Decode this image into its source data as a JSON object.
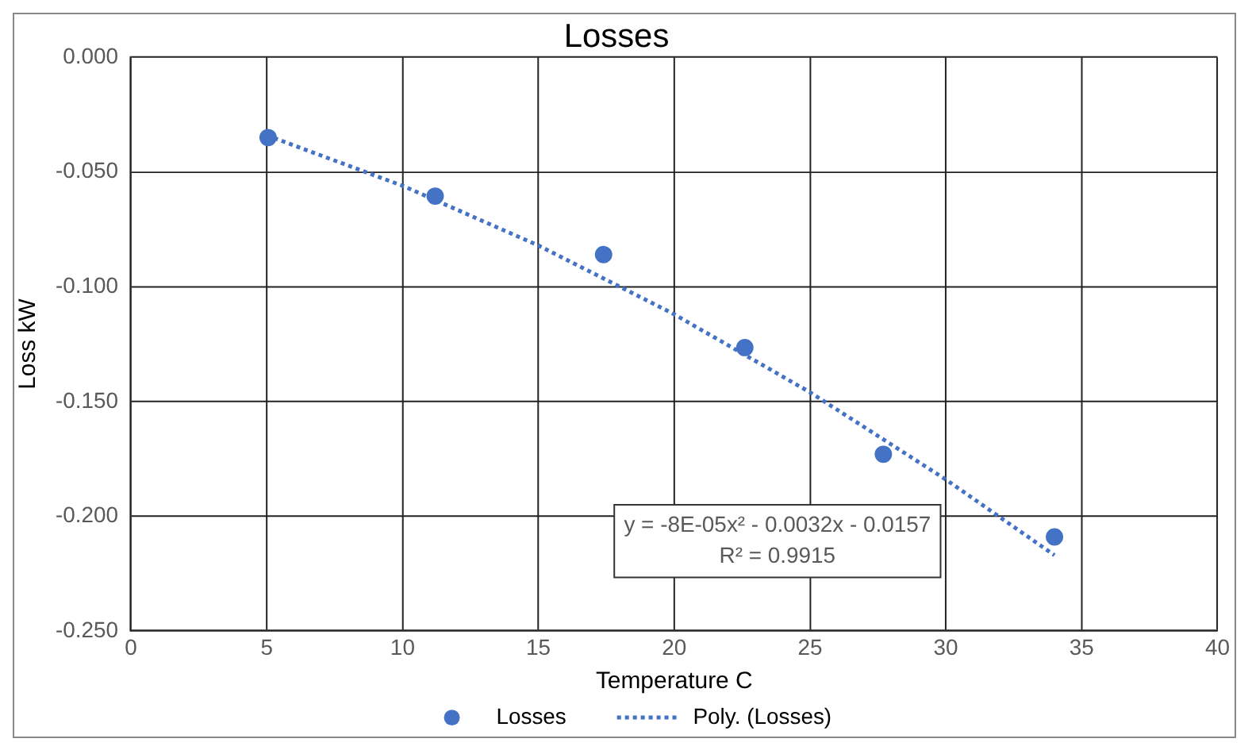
{
  "chart_data": {
    "type": "scatter",
    "title": "Losses",
    "xlabel": "Temperature C",
    "ylabel": "Loss kW",
    "series": [
      {
        "name": "Losses",
        "type": "scatter",
        "color": "#4472c4",
        "marker": "circle",
        "x": [
          5.05,
          11.2,
          17.4,
          22.6,
          27.7,
          34.0
        ],
        "values": [
          -0.035,
          -0.0605,
          -0.086,
          -0.1265,
          -0.173,
          -0.209
        ]
      },
      {
        "name": "Poly. (Losses)",
        "type": "line",
        "color": "#4472c4",
        "marker": "none",
        "line_style": "dotted",
        "x": [
          5,
          10,
          15,
          20,
          25,
          30,
          34
        ],
        "values": [
          -0.034,
          -0.056,
          -0.082,
          -0.112,
          -0.146,
          -0.184,
          -0.217
        ]
      }
    ],
    "annotations": [
      "y = -8E-05x² - 0.0032x - 0.0157",
      "R² = 0.9915"
    ],
    "xlim": [
      0,
      40
    ],
    "xticks": [
      0,
      5,
      10,
      15,
      20,
      25,
      30,
      35,
      40
    ],
    "ylim": [
      -0.25,
      0
    ],
    "yticks": [
      {
        "value": -0.25,
        "label": "-0.250"
      },
      {
        "value": -0.2,
        "label": "-0.200"
      },
      {
        "value": -0.15,
        "label": "-0.150"
      },
      {
        "value": -0.1,
        "label": "-0.100"
      },
      {
        "value": -0.05,
        "label": "-0.050"
      },
      {
        "value": 0,
        "label": "0.000"
      }
    ],
    "grid": true,
    "legend": "bottom"
  }
}
